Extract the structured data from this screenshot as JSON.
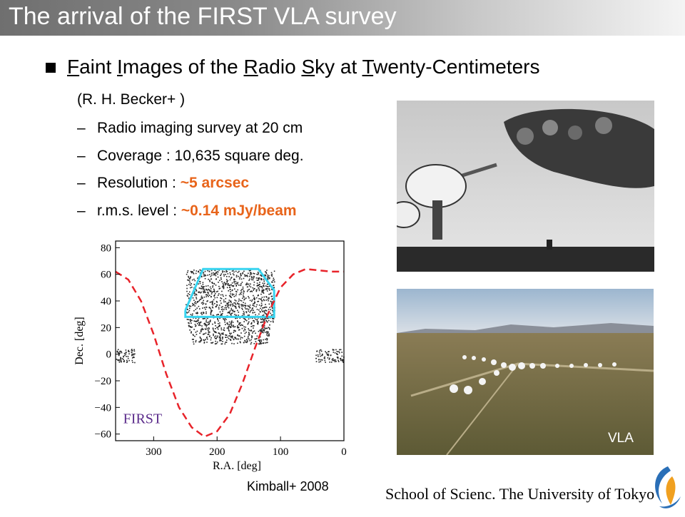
{
  "slide": {
    "title": "The arrival of the FIRST VLA survey",
    "heading_parts": [
      {
        "u": "F",
        "t": "aint "
      },
      {
        "u": "I",
        "t": "mages of the "
      },
      {
        "u": "R",
        "t": "adio "
      },
      {
        "u": "S",
        "t": "ky at "
      },
      {
        "u": "T",
        "t": "wenty-Centimeters"
      }
    ],
    "reference": "(R. H. Becker+ )",
    "dash": "–",
    "items": [
      {
        "label": "Radio imaging survey at 20 cm",
        "value": ""
      },
      {
        "label": "Coverage : 10,635 square deg.",
        "value": ""
      },
      {
        "label": "Resolution : ",
        "value": "~5 arcsec"
      },
      {
        "label": "r.m.s. level : ",
        "value": "~0.14 mJy/beam"
      }
    ],
    "photo_label": "VLA",
    "caption": "Kimball+ 2008",
    "footer": "School of Scienc. The University of Tokyo",
    "colors": {
      "highlight": "#e8641a",
      "title_text": "#ffffff",
      "curve": "#e8232a",
      "region": "#38d4f0"
    }
  },
  "chart_data": {
    "type": "scatter",
    "xlabel": "R.A. [deg]",
    "ylabel": "Dec. [deg]",
    "xlim": [
      360,
      0
    ],
    "ylim": [
      -65,
      85
    ],
    "xticks": [
      300,
      200,
      100,
      0
    ],
    "yticks": [
      80,
      60,
      40,
      20,
      0,
      -20,
      -40,
      -60
    ],
    "xtick_labels": [
      "300",
      "200",
      "100",
      "0"
    ],
    "ytick_labels": [
      "80",
      "60",
      "40",
      "20",
      "0",
      "−20",
      "−40",
      "−60"
    ],
    "annotation": "FIRST",
    "galactic_plane_curve": {
      "x": [
        360,
        340,
        320,
        300,
        280,
        260,
        240,
        220,
        200,
        180,
        160,
        140,
        120,
        100,
        80,
        60,
        40,
        20,
        0
      ],
      "y": [
        62,
        56,
        40,
        15,
        -15,
        -40,
        -55,
        -62,
        -58,
        -45,
        -22,
        5,
        30,
        50,
        60,
        64,
        63,
        62,
        62
      ]
    },
    "survey_region_outline": {
      "x": [
        250,
        222,
        135,
        110,
        110,
        250,
        250
      ],
      "y": [
        33,
        64,
        64,
        48,
        28,
        28,
        33
      ]
    }
  }
}
